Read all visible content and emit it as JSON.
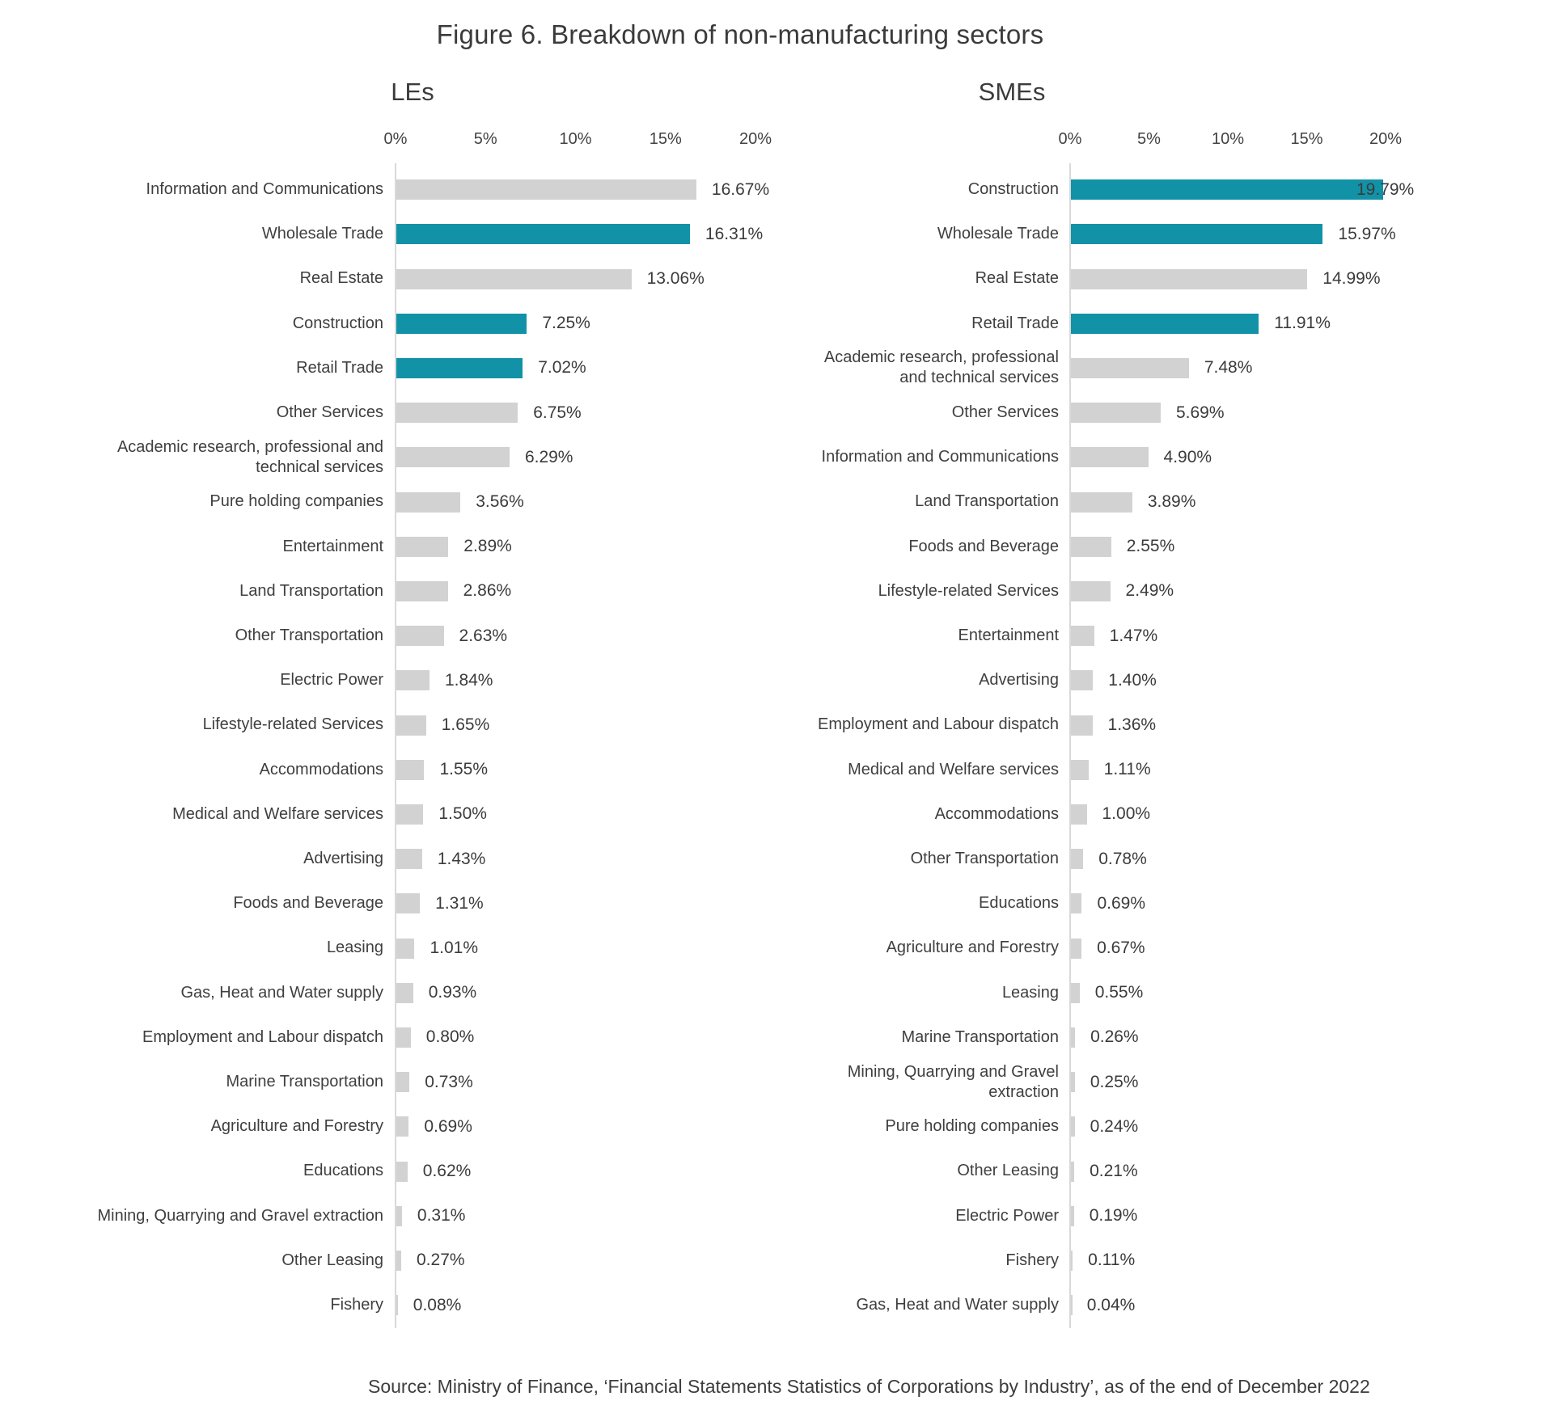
{
  "figure": {
    "title": "Figure 6. Breakdown of non-manufacturing sectors",
    "source": "Source: Ministry of Finance, ‘Financial Statements Statistics of Corporations by Industry’, as of the end of December 2022"
  },
  "colors": {
    "highlight_bar": "#1292a7",
    "default_bar": "#d2d2d2",
    "axis_line": "#d9d9d9",
    "text": "#3d3d3d"
  },
  "chart_data": [
    {
      "type": "bar",
      "orientation": "horizontal",
      "title": "LEs",
      "xlim": [
        0,
        20
      ],
      "tick_labels": [
        "0%",
        "5%",
        "10%",
        "15%",
        "20%"
      ],
      "grid": false,
      "rows": [
        {
          "category": "Information and Communications",
          "value": 16.67,
          "label": "16.67%",
          "highlight": false
        },
        {
          "category": "Wholesale Trade",
          "value": 16.31,
          "label": "16.31%",
          "highlight": true
        },
        {
          "category": "Real Estate",
          "value": 13.06,
          "label": "13.06%",
          "highlight": false
        },
        {
          "category": "Construction",
          "value": 7.25,
          "label": "7.25%",
          "highlight": true
        },
        {
          "category": "Retail Trade",
          "value": 7.02,
          "label": "7.02%",
          "highlight": true
        },
        {
          "category": "Other Services",
          "value": 6.75,
          "label": "6.75%",
          "highlight": false
        },
        {
          "category": "Academic research, professional and\ntechnical services",
          "value": 6.29,
          "label": "6.29%",
          "highlight": false
        },
        {
          "category": "Pure holding companies",
          "value": 3.56,
          "label": "3.56%",
          "highlight": false
        },
        {
          "category": "Entertainment",
          "value": 2.89,
          "label": "2.89%",
          "highlight": false
        },
        {
          "category": "Land Transportation",
          "value": 2.86,
          "label": "2.86%",
          "highlight": false
        },
        {
          "category": "Other Transportation",
          "value": 2.63,
          "label": "2.63%",
          "highlight": false
        },
        {
          "category": "Electric Power",
          "value": 1.84,
          "label": "1.84%",
          "highlight": false
        },
        {
          "category": "Lifestyle-related Services",
          "value": 1.65,
          "label": "1.65%",
          "highlight": false
        },
        {
          "category": "Accommodations",
          "value": 1.55,
          "label": "1.55%",
          "highlight": false
        },
        {
          "category": "Medical and Welfare services",
          "value": 1.5,
          "label": "1.50%",
          "highlight": false
        },
        {
          "category": "Advertising",
          "value": 1.43,
          "label": "1.43%",
          "highlight": false
        },
        {
          "category": "Foods and Beverage",
          "value": 1.31,
          "label": "1.31%",
          "highlight": false
        },
        {
          "category": "Leasing",
          "value": 1.01,
          "label": "1.01%",
          "highlight": false
        },
        {
          "category": "Gas, Heat and Water supply",
          "value": 0.93,
          "label": "0.93%",
          "highlight": false
        },
        {
          "category": "Employment and Labour dispatch",
          "value": 0.8,
          "label": "0.80%",
          "highlight": false
        },
        {
          "category": "Marine Transportation",
          "value": 0.73,
          "label": "0.73%",
          "highlight": false
        },
        {
          "category": "Agriculture and Forestry",
          "value": 0.69,
          "label": "0.69%",
          "highlight": false
        },
        {
          "category": "Educations",
          "value": 0.62,
          "label": "0.62%",
          "highlight": false
        },
        {
          "category": "Mining, Quarrying and Gravel extraction",
          "value": 0.31,
          "label": "0.31%",
          "highlight": false
        },
        {
          "category": "Other Leasing",
          "value": 0.27,
          "label": "0.27%",
          "highlight": false
        },
        {
          "category": "Fishery",
          "value": 0.08,
          "label": "0.08%",
          "highlight": false
        }
      ]
    },
    {
      "type": "bar",
      "orientation": "horizontal",
      "title": "SMEs",
      "xlim": [
        0,
        20
      ],
      "tick_labels": [
        "0%",
        "5%",
        "10%",
        "15%",
        "20%"
      ],
      "grid": false,
      "rows": [
        {
          "category": "Construction",
          "value": 19.79,
          "label": "19.79%",
          "highlight": true
        },
        {
          "category": "Wholesale Trade",
          "value": 15.97,
          "label": "15.97%",
          "highlight": true
        },
        {
          "category": "Real Estate",
          "value": 14.99,
          "label": "14.99%",
          "highlight": false
        },
        {
          "category": "Retail Trade",
          "value": 11.91,
          "label": "11.91%",
          "highlight": true
        },
        {
          "category": "Academic research, professional\nand technical services",
          "value": 7.48,
          "label": "7.48%",
          "highlight": false
        },
        {
          "category": "Other Services",
          "value": 5.69,
          "label": "5.69%",
          "highlight": false
        },
        {
          "category": "Information and Communications",
          "value": 4.9,
          "label": "4.90%",
          "highlight": false
        },
        {
          "category": "Land Transportation",
          "value": 3.89,
          "label": "3.89%",
          "highlight": false
        },
        {
          "category": "Foods and Beverage",
          "value": 2.55,
          "label": "2.55%",
          "highlight": false
        },
        {
          "category": "Lifestyle-related Services",
          "value": 2.49,
          "label": "2.49%",
          "highlight": false
        },
        {
          "category": "Entertainment",
          "value": 1.47,
          "label": "1.47%",
          "highlight": false
        },
        {
          "category": "Advertising",
          "value": 1.4,
          "label": "1.40%",
          "highlight": false
        },
        {
          "category": "Employment and Labour dispatch",
          "value": 1.36,
          "label": "1.36%",
          "highlight": false
        },
        {
          "category": "Medical and Welfare services",
          "value": 1.11,
          "label": "1.11%",
          "highlight": false
        },
        {
          "category": "Accommodations",
          "value": 1.0,
          "label": "1.00%",
          "highlight": false
        },
        {
          "category": "Other Transportation",
          "value": 0.78,
          "label": "0.78%",
          "highlight": false
        },
        {
          "category": "Educations",
          "value": 0.69,
          "label": "0.69%",
          "highlight": false
        },
        {
          "category": "Agriculture and Forestry",
          "value": 0.67,
          "label": "0.67%",
          "highlight": false
        },
        {
          "category": "Leasing",
          "value": 0.55,
          "label": "0.55%",
          "highlight": false
        },
        {
          "category": "Marine Transportation",
          "value": 0.26,
          "label": "0.26%",
          "highlight": false
        },
        {
          "category": "Mining, Quarrying and Gravel\nextraction",
          "value": 0.25,
          "label": "0.25%",
          "highlight": false
        },
        {
          "category": "Pure holding companies",
          "value": 0.24,
          "label": "0.24%",
          "highlight": false
        },
        {
          "category": "Other Leasing",
          "value": 0.21,
          "label": "0.21%",
          "highlight": false
        },
        {
          "category": "Electric Power",
          "value": 0.19,
          "label": "0.19%",
          "highlight": false
        },
        {
          "category": "Fishery",
          "value": 0.11,
          "label": "0.11%",
          "highlight": false
        },
        {
          "category": "Gas, Heat and Water supply",
          "value": 0.04,
          "label": "0.04%",
          "highlight": false
        }
      ]
    }
  ]
}
